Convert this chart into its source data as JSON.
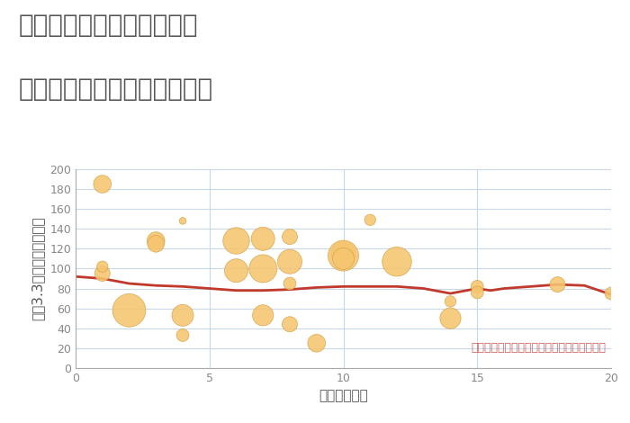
{
  "title_line1": "大阪府堺市堺区神明町東の",
  "title_line2": "駅距離別中古マンション価格",
  "xlabel": "駅距離（分）",
  "ylabel": "坪（3.3㎡）単価（万円）",
  "xlim": [
    0,
    20
  ],
  "ylim": [
    0,
    200
  ],
  "yticks": [
    0,
    20,
    40,
    60,
    80,
    100,
    120,
    140,
    160,
    180,
    200
  ],
  "xticks": [
    0,
    5,
    10,
    15,
    20
  ],
  "annotation": "円の大きさは、取引のあった物件面積を示す",
  "scatter_x": [
    1,
    1,
    1,
    2,
    3,
    3,
    4,
    4,
    4,
    6,
    6,
    7,
    7,
    7,
    8,
    8,
    8,
    8,
    9,
    10,
    10,
    10,
    11,
    12,
    14,
    14,
    15,
    15,
    18,
    20
  ],
  "scatter_y": [
    185,
    95,
    102,
    58,
    128,
    125,
    148,
    53,
    33,
    128,
    98,
    130,
    100,
    53,
    132,
    107,
    85,
    44,
    25,
    115,
    113,
    110,
    149,
    107,
    67,
    50,
    82,
    76,
    84,
    75
  ],
  "scatter_size": [
    200,
    150,
    80,
    700,
    200,
    180,
    30,
    300,
    100,
    450,
    350,
    350,
    500,
    280,
    150,
    380,
    100,
    150,
    200,
    380,
    600,
    300,
    80,
    550,
    80,
    280,
    100,
    100,
    150,
    100
  ],
  "scatter_color": "#f5c570",
  "scatter_edgecolor": "#d4a040",
  "line_x": [
    0,
    1,
    2,
    3,
    4,
    5,
    6,
    7,
    8,
    9,
    10,
    11,
    12,
    13,
    14,
    15,
    15.5,
    16,
    17,
    18,
    19,
    20
  ],
  "line_y": [
    92,
    90,
    85,
    83,
    82,
    80,
    78,
    78,
    79,
    81,
    82,
    82,
    82,
    80,
    75,
    80,
    78,
    80,
    82,
    84,
    83,
    74
  ],
  "line_color": "#c0392b",
  "line_width": 2.0,
  "background_color": "#ffffff",
  "grid_color": "#c8d8e8",
  "title_color": "#555555",
  "annotation_color": "#d06060",
  "title_fontsize": 20,
  "label_fontsize": 11,
  "tick_fontsize": 9,
  "annotation_fontsize": 9
}
